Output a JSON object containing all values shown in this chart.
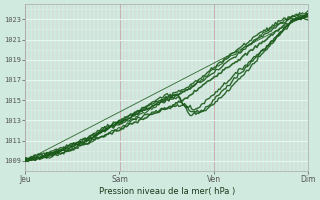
{
  "title": "Pression niveau de la mer( hPa )",
  "background_color": "#d0eae0",
  "plot_bg_color": "#d0eae0",
  "grid_color_v_major": "#c8b0b0",
  "grid_color_v_minor": "#dcc8c8",
  "grid_color_h": "#e8f8f0",
  "line_color": "#1a5a1a",
  "ylim": [
    1008.0,
    1024.5
  ],
  "yticks": [
    1009,
    1011,
    1013,
    1015,
    1017,
    1019,
    1021,
    1023
  ],
  "xtick_labels": [
    "Jeu",
    "Sam",
    "Ven",
    "Dim"
  ],
  "xtick_day_positions": [
    0.0,
    0.333,
    0.667,
    1.0
  ],
  "num_days": 3,
  "lines": [
    {
      "x": [
        0,
        0.04,
        0.09,
        0.15,
        0.22,
        0.28,
        0.35,
        0.42,
        0.5,
        0.56,
        0.63,
        0.7,
        0.78,
        0.85,
        0.92,
        1.0
      ],
      "y": [
        1009.0,
        1009.2,
        1009.5,
        1010.0,
        1010.8,
        1011.5,
        1012.3,
        1013.2,
        1014.2,
        1015.0,
        1016.5,
        1018.0,
        1019.5,
        1021.0,
        1022.5,
        1023.5
      ],
      "lw": 1.2
    },
    {
      "x": [
        0,
        0.04,
        0.09,
        0.15,
        0.22,
        0.28,
        0.35,
        0.42,
        0.5,
        0.56,
        0.6,
        0.65,
        0.72,
        0.8,
        0.88,
        0.95,
        1.0
      ],
      "y": [
        1009.1,
        1009.3,
        1009.7,
        1010.2,
        1011.0,
        1012.0,
        1012.8,
        1013.5,
        1014.2,
        1014.6,
        1014.0,
        1015.2,
        1017.0,
        1019.0,
        1021.0,
        1023.0,
        1023.2
      ],
      "lw": 1.0
    },
    {
      "x": [
        0,
        0.04,
        0.09,
        0.15,
        0.22,
        0.28,
        0.35,
        0.42,
        0.5,
        0.54,
        0.58,
        0.63,
        0.7,
        0.78,
        0.86,
        0.94,
        1.0
      ],
      "y": [
        1009.2,
        1009.4,
        1009.8,
        1010.4,
        1011.2,
        1012.2,
        1013.0,
        1014.0,
        1015.0,
        1015.3,
        1014.0,
        1013.8,
        1015.5,
        1017.8,
        1020.2,
        1022.8,
        1023.5
      ],
      "lw": 1.0
    },
    {
      "x": [
        0,
        0.04,
        0.09,
        0.15,
        0.22,
        0.28,
        0.35,
        0.42,
        0.5,
        0.54,
        0.58,
        0.63,
        0.7,
        0.78,
        0.86,
        0.94,
        1.0
      ],
      "y": [
        1009.3,
        1009.5,
        1009.9,
        1010.5,
        1011.3,
        1012.3,
        1013.2,
        1014.3,
        1015.3,
        1015.5,
        1013.5,
        1014.0,
        1016.0,
        1018.2,
        1020.5,
        1022.8,
        1023.3
      ],
      "lw": 1.0
    },
    {
      "x": [
        0,
        0.04,
        0.09,
        0.15,
        0.22,
        0.28,
        0.35,
        0.42,
        0.5,
        0.56,
        0.62,
        0.68,
        0.75,
        0.82,
        0.9,
        0.96,
        1.0
      ],
      "y": [
        1009.0,
        1009.2,
        1009.6,
        1010.2,
        1011.0,
        1012.0,
        1013.0,
        1014.0,
        1015.2,
        1015.8,
        1016.8,
        1018.0,
        1019.5,
        1021.0,
        1022.5,
        1023.2,
        1023.0
      ],
      "lw": 1.0
    },
    {
      "x": [
        0,
        0.04,
        0.09,
        0.15,
        0.22,
        0.28,
        0.35,
        0.42,
        0.5,
        0.56,
        0.62,
        0.68,
        0.75,
        0.82,
        0.9,
        0.96,
        1.0
      ],
      "y": [
        1009.1,
        1009.3,
        1009.7,
        1010.3,
        1011.1,
        1012.1,
        1013.2,
        1014.3,
        1015.5,
        1016.0,
        1017.2,
        1018.5,
        1020.0,
        1021.5,
        1022.8,
        1023.5,
        1023.2
      ],
      "lw": 1.0
    },
    {
      "x": [
        0,
        0.04,
        0.09,
        0.15,
        0.22,
        0.28,
        0.35,
        0.42,
        0.5,
        0.56,
        0.63,
        0.7,
        0.78,
        0.85,
        0.92,
        1.0
      ],
      "y": [
        1009.0,
        1009.1,
        1009.4,
        1009.9,
        1010.7,
        1011.5,
        1012.5,
        1013.8,
        1015.0,
        1015.8,
        1017.2,
        1018.8,
        1020.3,
        1021.8,
        1023.0,
        1023.8
      ],
      "lw": 0.8
    },
    {
      "x": [
        0,
        1.0
      ],
      "y": [
        1009.0,
        1023.5
      ],
      "lw": 0.6
    }
  ]
}
